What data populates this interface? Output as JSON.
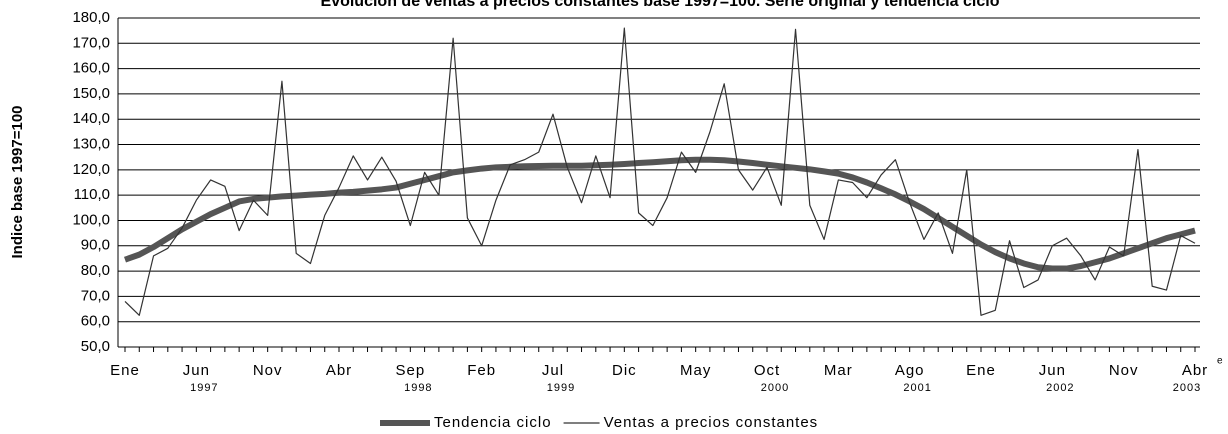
{
  "chart_data": {
    "type": "line",
    "title": "Evolución de ventas a precios constantes base 1997=100. Serie original y tendencia ciclo",
    "y_label": "Indice base 1997=100",
    "categories": [
      "Ene",
      null,
      null,
      null,
      null,
      "Jun",
      null,
      null,
      null,
      null,
      "Nov",
      null,
      null,
      null,
      null,
      "Abr",
      null,
      null,
      null,
      null,
      "Sep",
      null,
      null,
      null,
      null,
      "Feb",
      null,
      null,
      null,
      null,
      "Jul",
      null,
      null,
      null,
      null,
      "Dic",
      null,
      null,
      null,
      null,
      "May",
      null,
      null,
      null,
      null,
      "Oct",
      null,
      null,
      null,
      null,
      "Mar",
      null,
      null,
      null,
      null,
      "Ago",
      null,
      null,
      null,
      null,
      "Ene",
      null,
      null,
      null,
      null,
      "Jun",
      null,
      null,
      null,
      null,
      "Nov",
      null,
      null,
      null,
      null,
      "Abr"
    ],
    "year_labels": [
      null,
      null,
      null,
      null,
      null,
      "1997",
      null,
      null,
      null,
      null,
      null,
      null,
      null,
      null,
      null,
      null,
      null,
      null,
      null,
      null,
      "1998",
      null,
      null,
      null,
      null,
      null,
      null,
      null,
      null,
      null,
      "1999",
      null,
      null,
      null,
      null,
      null,
      null,
      null,
      null,
      null,
      null,
      null,
      null,
      null,
      null,
      "2000",
      null,
      null,
      null,
      null,
      null,
      null,
      null,
      null,
      null,
      "2001",
      null,
      null,
      null,
      null,
      null,
      null,
      null,
      null,
      null,
      "2002",
      null,
      null,
      null,
      null,
      null,
      null,
      null,
      null,
      null,
      "2003"
    ],
    "last_label_note": "e",
    "series": [
      {
        "name": "Tendencia ciclo",
        "color": "#555555",
        "width": 6,
        "values": [
          84.5,
          86.5,
          89.5,
          93,
          96.5,
          99.5,
          102.5,
          105,
          107.5,
          108.5,
          109,
          109.5,
          109.8,
          110.2,
          110.5,
          111,
          111.3,
          111.8,
          112.3,
          113,
          114.5,
          116,
          117.5,
          119,
          119.8,
          120.5,
          121,
          121.2,
          121.4,
          121.5,
          121.6,
          121.6,
          121.6,
          121.8,
          122,
          122.3,
          122.7,
          123,
          123.4,
          123.8,
          124,
          124,
          123.8,
          123.3,
          122.7,
          122,
          121.4,
          120.8,
          120.2,
          119.4,
          118.5,
          117,
          115,
          112.7,
          110.3,
          107.5,
          104.5,
          101,
          97.5,
          94,
          90.5,
          87.5,
          85,
          83,
          81.5,
          81,
          81,
          82,
          83.5,
          85,
          87,
          89,
          91,
          93,
          94.5,
          96
        ]
      },
      {
        "name": "Ventas a precios constantes",
        "color": "#333333",
        "width": 1.2,
        "values": [
          68,
          62.5,
          86,
          89,
          97,
          108,
          116,
          113.5,
          96,
          108,
          102,
          155,
          87,
          83,
          102,
          113,
          125.5,
          116,
          125,
          115.5,
          98,
          119,
          110,
          172,
          101,
          90,
          108,
          122,
          124,
          127,
          142,
          121,
          107,
          125.5,
          109,
          176,
          103,
          98,
          109,
          127,
          119,
          135,
          154,
          120,
          112,
          121,
          106,
          175.5,
          106,
          92.5,
          116,
          115,
          109,
          118,
          124,
          107,
          92.5,
          103,
          87,
          120,
          62.5,
          64.5,
          92,
          73.5,
          76.5,
          90,
          93,
          86,
          76.5,
          89.5,
          86,
          128,
          74,
          72.5,
          94,
          91
        ]
      }
    ],
    "ylim": [
      50,
      180
    ],
    "yticks": [
      {
        "value": 50,
        "label": "50,0"
      },
      {
        "value": 60,
        "label": "60,0"
      },
      {
        "value": 70,
        "label": "70,0"
      },
      {
        "value": 80,
        "label": "80,0"
      },
      {
        "value": 90,
        "label": "90,0"
      },
      {
        "value": 100,
        "label": "100,0"
      },
      {
        "value": 110,
        "label": "110,0"
      },
      {
        "value": 120,
        "label": "120,0"
      },
      {
        "value": 130,
        "label": "130,0"
      },
      {
        "value": 140,
        "label": "140,0"
      },
      {
        "value": 150,
        "label": "150,0"
      },
      {
        "value": 160,
        "label": "160,0"
      },
      {
        "value": 170,
        "label": "170,0"
      },
      {
        "value": 180,
        "label": "180,0"
      }
    ],
    "grid": true,
    "legend": "bottom"
  }
}
